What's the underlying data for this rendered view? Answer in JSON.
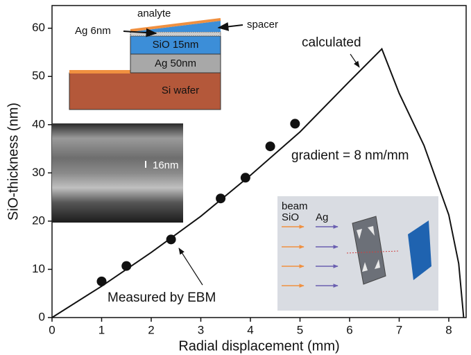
{
  "chart_data": {
    "type": "scatter",
    "xlabel": "Radial displacement (mm)",
    "ylabel": "SiO-thickness (nm)",
    "xlim": [
      0,
      8.35
    ],
    "ylim": [
      0,
      64.7
    ],
    "xticks": [
      0,
      1,
      2,
      3,
      4,
      5,
      6,
      7,
      8
    ],
    "yticks": [
      0,
      10,
      20,
      30,
      40,
      50,
      60
    ],
    "series": [
      {
        "name": "Measured by EBM",
        "style": "markers",
        "color": "#111111",
        "x": [
          1,
          1.5,
          2.4,
          3.4,
          3.9,
          4.4,
          4.9
        ],
        "values": [
          7.5,
          10.7,
          16.2,
          24.7,
          29,
          35.5,
          40.2
        ]
      },
      {
        "name": "calculated",
        "style": "line",
        "color": "#111111",
        "x": [
          0,
          1,
          2,
          3,
          4,
          5,
          6,
          6.65,
          7,
          7.5,
          8,
          8.2,
          8.3
        ],
        "values": [
          0,
          6.5,
          13.5,
          21,
          29.5,
          38.5,
          49,
          55.7,
          46.5,
          35.7,
          21.3,
          11.2,
          0
        ]
      }
    ],
    "annotations": {
      "gradient": "gradient = 8 nm/mm"
    },
    "insets": {
      "layers": {
        "analyte": "analyte",
        "ag_top": "Ag 6nm",
        "spacer": "spacer",
        "sio": "SiO 15nm",
        "ag_bottom": "Ag 50nm",
        "wafer": "Si wafer"
      },
      "sem": {
        "scale": "16nm"
      },
      "setup": {
        "beam": "beam",
        "sio": "SiO",
        "ag": "Ag"
      }
    }
  }
}
